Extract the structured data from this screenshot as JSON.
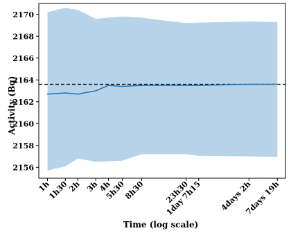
{
  "chart_data": {
    "type": "line",
    "title": "",
    "xlabel": "Time (log scale)",
    "ylabel": "Activity (Bq)",
    "x_scale": "log",
    "x_tick_labels": [
      "1h",
      "1h30",
      "2h",
      "3h",
      "4h",
      "5h30",
      "8h30",
      "23h30",
      "1day 7h15",
      "4days 2h",
      "7days 19h"
    ],
    "x_hours": [
      1,
      1.5,
      2,
      3,
      4,
      5.5,
      8.5,
      23.5,
      31.25,
      98,
      187
    ],
    "ylim": [
      2155,
      2171
    ],
    "yticks": [
      2156,
      2158,
      2160,
      2162,
      2164,
      2166,
      2168,
      2170
    ],
    "reference_line": 2163.6,
    "series": [
      {
        "values": [
          2162.7,
          2162.8,
          2162.7,
          2163.0,
          2163.5,
          2163.4,
          2163.5,
          2163.5,
          2163.5,
          2163.6,
          2163.6
        ],
        "band_upper": [
          2170.2,
          2170.6,
          2170.4,
          2169.6,
          2169.7,
          2169.8,
          2169.7,
          2169.2,
          2169.25,
          2169.35,
          2169.3
        ],
        "band_lower": [
          2155.7,
          2156.1,
          2156.8,
          2156.5,
          2156.55,
          2156.6,
          2157.2,
          2157.2,
          2157.05,
          2157.0,
          2156.95
        ]
      }
    ],
    "colors": {
      "band": "#b7d3ea",
      "line": "#2878b5",
      "reference": "#000000"
    }
  }
}
